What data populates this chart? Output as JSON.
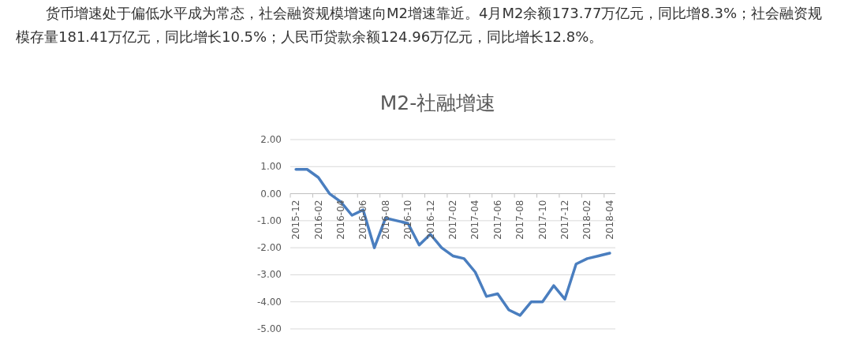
{
  "chart_data": {
    "type": "line",
    "title": "M2-社融增速",
    "annotations": [
      "货币增速处于偏低水平成为常态，社会融资规模增速向M2增速靠近。4月M2余额173.77万亿元，同比增8.3%；社会融资规模存量181.41万亿元，同比增长10.5%；人民币贷款余额124.96万亿元，同比增长12.8%。"
    ],
    "categories": [
      "2015-12",
      null,
      "2016-02",
      null,
      "2016-04",
      null,
      "2016-06",
      null,
      "2016-08",
      null,
      "2016-10",
      null,
      "2016-12",
      null,
      "2017-02",
      null,
      "2017-04",
      null,
      "2017-06",
      null,
      "2017-08",
      null,
      "2017-10",
      null,
      "2017-12",
      null,
      "2018-02",
      null,
      "2018-04"
    ],
    "series": [
      {
        "color": "#4a7ebf",
        "values": [
          0.9,
          0.9,
          0.6,
          0.0,
          -0.3,
          -0.8,
          -0.6,
          -2.0,
          -0.9,
          -1.0,
          -1.1,
          -1.9,
          -1.5,
          -2.0,
          -2.3,
          -2.4,
          -2.9,
          -3.8,
          -3.7,
          -4.3,
          -4.5,
          -4.0,
          -4.0,
          -3.4,
          -3.9,
          -2.6,
          -2.4,
          -2.3,
          -2.2
        ]
      }
    ],
    "ylim": [
      -5,
      2
    ],
    "yticks": [
      {
        "value": 2,
        "label": "2.00"
      },
      {
        "value": 1,
        "label": "1.00"
      },
      {
        "value": 0,
        "label": "0.00"
      },
      {
        "value": -1,
        "label": "-1.00"
      },
      {
        "value": -2,
        "label": "-2.00"
      },
      {
        "value": -3,
        "label": "-3.00"
      },
      {
        "value": -4,
        "label": "-4.00"
      },
      {
        "value": -5,
        "label": "-5.00"
      }
    ],
    "grid": "y"
  }
}
